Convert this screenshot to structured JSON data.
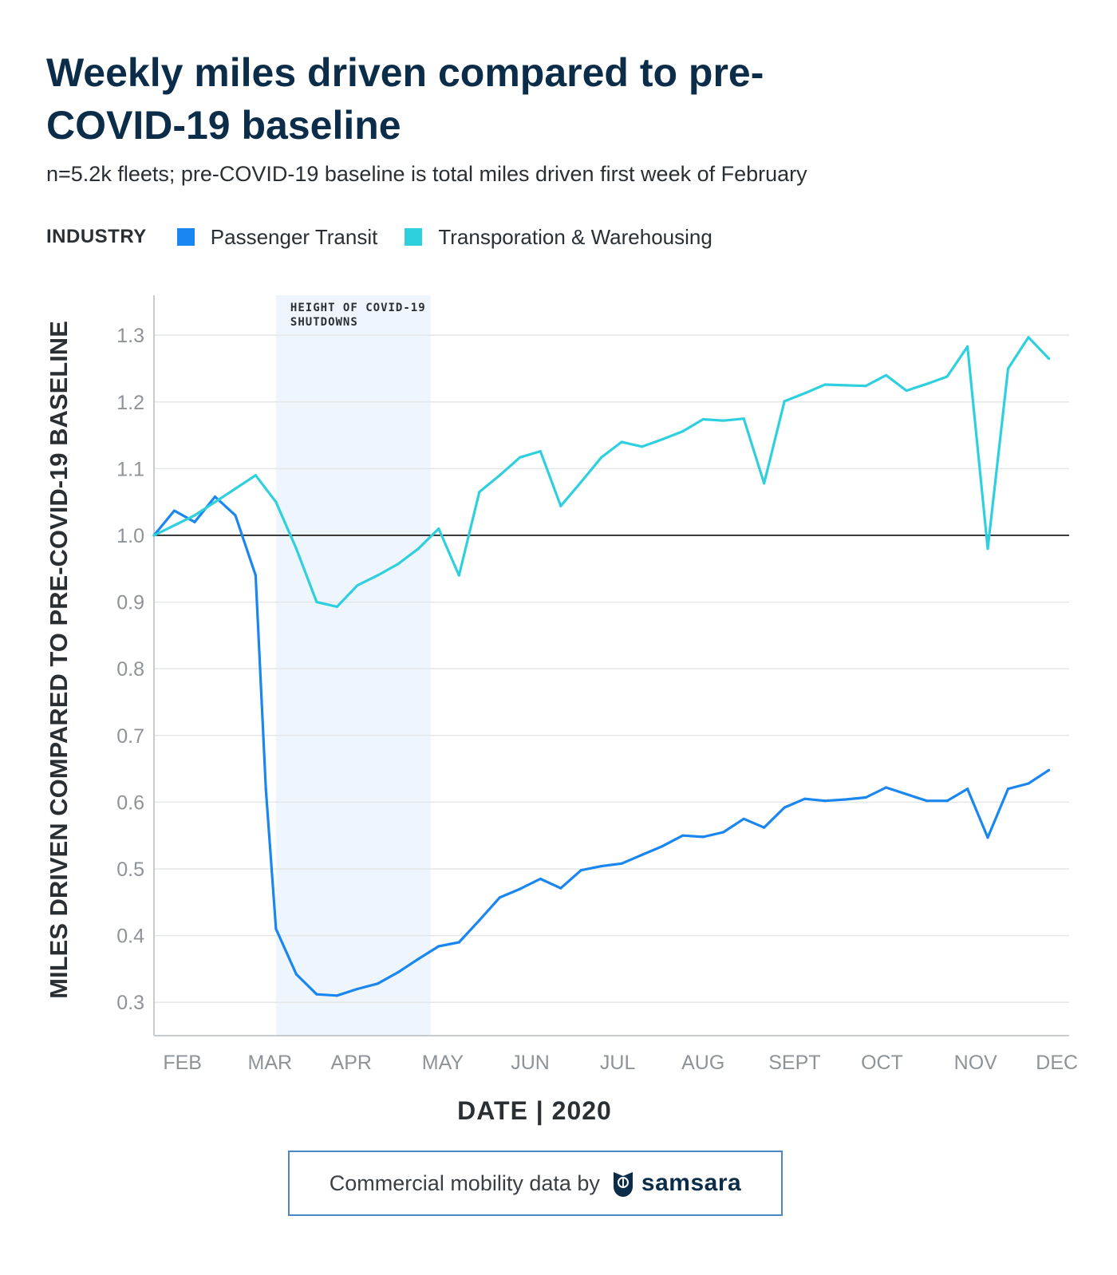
{
  "header": {
    "title": "Weekly miles driven compared to pre-COVID-19 baseline",
    "subtitle": "n=5.2k fleets; pre-COVID-19 baseline is total miles driven first week of February"
  },
  "legend": {
    "title": "INDUSTRY",
    "items": [
      {
        "label": "Passenger Transit",
        "color": "#1a86f0"
      },
      {
        "label": "Transporation & Warehousing",
        "color": "#2fd0de"
      }
    ]
  },
  "chart_data": {
    "type": "line",
    "title": "Weekly miles driven compared to pre-COVID-19 baseline",
    "xlabel": "DATE  |  2020",
    "ylabel": "MILES DRIVEN COMPARED TO PRE-COVID-19 BASELINE",
    "ylim": [
      0.25,
      1.36
    ],
    "yticks": [
      0.3,
      0.4,
      0.5,
      0.6,
      0.7,
      0.8,
      0.9,
      1.0,
      1.1,
      1.2,
      1.3
    ],
    "xlim": [
      0,
      45
    ],
    "month_ticks": [
      {
        "label": "FEB",
        "week": 1.4
      },
      {
        "label": "MAR",
        "week": 5.7
      },
      {
        "label": "APR",
        "week": 9.7
      },
      {
        "label": "MAY",
        "week": 14.2
      },
      {
        "label": "JUN",
        "week": 18.5
      },
      {
        "label": "JUL",
        "week": 22.8
      },
      {
        "label": "AUG",
        "week": 27.0
      },
      {
        "label": "SEPT",
        "week": 31.5
      },
      {
        "label": "OCT",
        "week": 35.8
      },
      {
        "label": "NOV",
        "week": 40.4
      },
      {
        "label": "DEC",
        "week": 44.4
      }
    ],
    "baseline": 1.0,
    "annotation": {
      "lines": [
        "HEIGHT OF COVID-19",
        "SHUTDOWNS"
      ],
      "week_start": 6,
      "week_end": 13.6
    },
    "x": [
      0,
      1,
      2,
      3,
      4,
      5,
      5.5,
      6,
      7,
      8,
      9,
      10,
      11,
      12,
      13,
      14,
      15,
      16,
      17,
      18,
      19,
      20,
      21,
      22,
      23,
      24,
      25,
      26,
      27,
      28,
      29,
      30,
      31,
      32,
      33,
      34,
      35,
      36,
      37,
      38,
      39,
      40,
      41,
      42,
      43,
      44,
      45
    ],
    "series": [
      {
        "name": "Passenger Transit",
        "color": "#1a86f0",
        "values": [
          1.0,
          1.037,
          1.02,
          1.058,
          1.03,
          0.94,
          0.62,
          0.41,
          0.342,
          0.312,
          0.31,
          0.32,
          0.328,
          0.345,
          0.365,
          0.384,
          0.39,
          0.423,
          0.457,
          0.47,
          0.485,
          0.471,
          0.498,
          0.504,
          0.508,
          0.521,
          0.534,
          0.55,
          0.548,
          0.555,
          0.575,
          0.562,
          0.592,
          0.605,
          0.602,
          0.604,
          0.607,
          0.622,
          0.612,
          0.602,
          0.602,
          0.62,
          0.547,
          0.62,
          0.628,
          0.648,
          null
        ]
      },
      {
        "name": "Transporation & Warehousing",
        "color": "#2fd0de",
        "values": [
          1.0,
          1.015,
          1.03,
          1.05,
          1.07,
          1.09,
          null,
          1.05,
          0.98,
          0.9,
          0.893,
          0.925,
          0.94,
          0.957,
          0.98,
          1.01,
          0.94,
          1.065,
          1.09,
          1.117,
          1.126,
          1.044,
          1.08,
          1.117,
          1.14,
          1.133,
          1.144,
          1.156,
          1.174,
          1.172,
          1.175,
          1.078,
          1.201,
          1.213,
          1.226,
          1.225,
          1.224,
          1.24,
          1.217,
          1.227,
          1.238,
          1.283,
          0.98,
          1.25,
          1.297,
          1.265,
          null
        ]
      }
    ]
  },
  "footer": {
    "text": "Commercial mobility data by",
    "brand": "samsara"
  }
}
